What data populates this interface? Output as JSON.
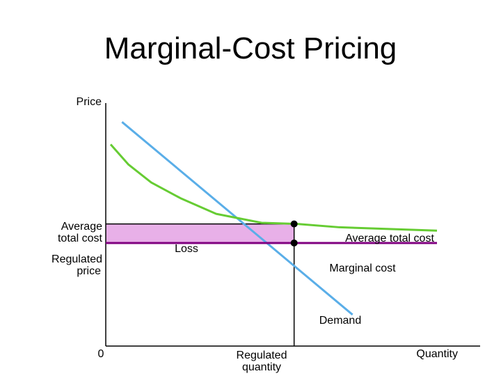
{
  "chart_data": {
    "type": "line",
    "title": "Marginal-Cost Pricing",
    "ylabel": "Price",
    "xlabel": "Quantity",
    "origin_label": "0",
    "y_tick_labels": {
      "average_total_cost": [
        "Average",
        "total cost"
      ],
      "regulated_price": [
        "Regulated",
        "price"
      ]
    },
    "x_tick_labels": {
      "regulated_quantity": [
        "Regulated",
        "quantity"
      ]
    },
    "annotations": {
      "loss": "Loss"
    },
    "series": [
      {
        "name": "Demand",
        "color": "#5aaee8",
        "points": [
          [
            0.5,
            10
          ],
          [
            7.6,
            1.4
          ]
        ]
      },
      {
        "name": "Average total cost",
        "color": "#66cc33",
        "points": [
          [
            0.15,
            9.0
          ],
          [
            0.7,
            8.1
          ],
          [
            1.4,
            7.3
          ],
          [
            2.3,
            6.6
          ],
          [
            3.4,
            5.9
          ],
          [
            4.8,
            5.5
          ],
          [
            5.9,
            5.45
          ],
          [
            7.2,
            5.3
          ],
          [
            10.2,
            5.15
          ]
        ]
      },
      {
        "name": "Marginal cost",
        "color": "#800080",
        "points": [
          [
            0,
            4.6
          ],
          [
            10.2,
            4.6
          ]
        ]
      }
    ],
    "regulated_quantity": 5.8,
    "regulated_price": 4.6,
    "atc_at_regulated_quantity": 5.45,
    "loss_fill_color": "#e8b0e8",
    "xlim": [
      0,
      12
    ],
    "ylim": [
      0,
      11
    ]
  }
}
